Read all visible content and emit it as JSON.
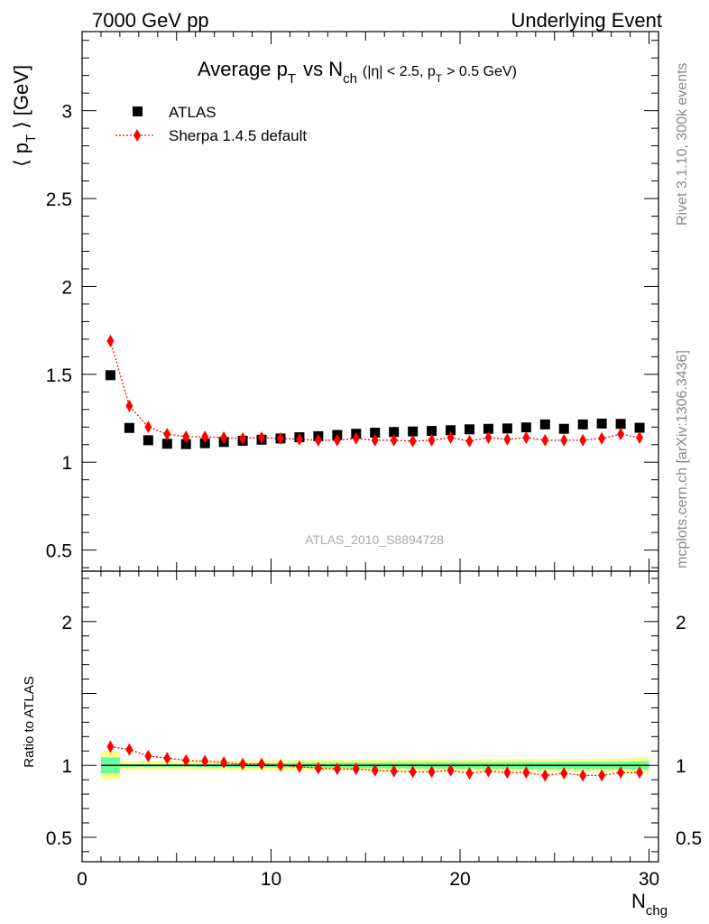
{
  "header": {
    "left": "7000 GeV pp",
    "right": "Underlying Event"
  },
  "side_labels": {
    "rivet": "Rivet 3.1.10,  300k events",
    "mcplots": "mcplots.cern.ch [arXiv:1306.3436]"
  },
  "chart_data": [
    {
      "type": "scatter",
      "title": {
        "main": "Average p",
        "main_sub": "T",
        "vs": "vs N",
        "vs_sub": "ch",
        "cut_a": "(|η| < 2.5, p",
        "cut_sub": "T",
        "cut_b": "> 0.5 GeV)"
      },
      "ylabel": {
        "pre": "⟨ p",
        "sub": "T",
        "post": "⟩ [GeV]"
      },
      "ylim": [
        0.38,
        3.45
      ],
      "yticks": [
        0.5,
        1,
        1.5,
        2,
        2.5,
        3
      ],
      "yticklabels": [
        "0.5",
        "1",
        "1.5",
        "2",
        "2.5",
        "3"
      ],
      "xlim": [
        0,
        30.5
      ],
      "watermark": "ATLAS_2010_S8894728",
      "legend": [
        "ATLAS",
        "Sherpa 1.4.5 default"
      ],
      "legend_position": "top-left",
      "x": [
        1.5,
        2.5,
        3.5,
        4.5,
        5.5,
        6.5,
        7.5,
        8.5,
        9.5,
        10.5,
        11.5,
        12.5,
        13.5,
        14.5,
        15.5,
        16.5,
        17.5,
        18.5,
        19.5,
        20.5,
        21.5,
        22.5,
        23.5,
        24.5,
        25.5,
        26.5,
        27.5,
        28.5,
        29.5
      ],
      "series": [
        {
          "name": "ATLAS",
          "color": "#000000",
          "marker": "square",
          "values": [
            1.495,
            1.195,
            1.125,
            1.105,
            1.103,
            1.108,
            1.115,
            1.122,
            1.128,
            1.135,
            1.142,
            1.148,
            1.155,
            1.162,
            1.168,
            1.172,
            1.175,
            1.178,
            1.182,
            1.187,
            1.19,
            1.192,
            1.198,
            1.215,
            1.19,
            1.215,
            1.22,
            1.218,
            1.196
          ]
        },
        {
          "name": "Sherpa 1.4.5 default",
          "color": "#ff0000",
          "marker": "diamond",
          "line": "dotted",
          "values": [
            1.69,
            1.32,
            1.2,
            1.16,
            1.145,
            1.145,
            1.14,
            1.135,
            1.14,
            1.135,
            1.13,
            1.125,
            1.125,
            1.135,
            1.125,
            1.125,
            1.12,
            1.125,
            1.14,
            1.12,
            1.14,
            1.13,
            1.14,
            1.125,
            1.125,
            1.125,
            1.135,
            1.16,
            1.14
          ]
        }
      ]
    },
    {
      "type": "scatter",
      "ylabel": "Ratio to ATLAS",
      "ylim": [
        0.33,
        2.35
      ],
      "yticks": [
        0.5,
        1,
        2
      ],
      "yticklabels": [
        "0.5",
        "1",
        "2"
      ],
      "xlim": [
        0,
        30.5
      ],
      "xticks": [
        0,
        10,
        20,
        30
      ],
      "xticklabels": [
        "0",
        "10",
        "20",
        "30"
      ],
      "xlabel": {
        "main": "N",
        "sub": "chg"
      },
      "reference_line": 1,
      "band_colors": {
        "inner": "#66ff99",
        "outer": "#ffff88"
      },
      "band_x_edges": [
        1,
        2,
        3,
        4,
        5,
        6,
        7,
        8,
        9,
        10,
        11,
        12,
        13,
        14,
        15,
        16,
        17,
        18,
        19,
        20,
        21,
        22,
        23,
        24,
        25,
        26,
        27,
        28,
        29,
        30
      ],
      "band_inner_halfwidth": [
        0.055,
        0.01,
        0.01,
        0.01,
        0.01,
        0.012,
        0.013,
        0.014,
        0.015,
        0.016,
        0.017,
        0.018,
        0.019,
        0.02,
        0.02,
        0.021,
        0.021,
        0.022,
        0.022,
        0.022,
        0.023,
        0.023,
        0.024,
        0.024,
        0.025,
        0.025,
        0.025,
        0.025,
        0.028
      ],
      "band_outer_halfwidth": [
        0.095,
        0.03,
        0.03,
        0.03,
        0.03,
        0.031,
        0.032,
        0.033,
        0.034,
        0.035,
        0.036,
        0.037,
        0.038,
        0.039,
        0.04,
        0.04,
        0.041,
        0.041,
        0.042,
        0.042,
        0.043,
        0.043,
        0.044,
        0.044,
        0.045,
        0.045,
        0.046,
        0.046,
        0.055
      ],
      "x": [
        1.5,
        2.5,
        3.5,
        4.5,
        5.5,
        6.5,
        7.5,
        8.5,
        9.5,
        10.5,
        11.5,
        12.5,
        13.5,
        14.5,
        15.5,
        16.5,
        17.5,
        18.5,
        19.5,
        20.5,
        21.5,
        22.5,
        23.5,
        24.5,
        25.5,
        26.5,
        27.5,
        28.5,
        29.5
      ],
      "series": [
        {
          "name": "Sherpa 1.4.5 default",
          "color": "#ff0000",
          "marker": "diamond",
          "line": "dotted",
          "values": [
            1.13,
            1.11,
            1.065,
            1.05,
            1.035,
            1.03,
            1.02,
            1.01,
            1.01,
            1.0,
            0.99,
            0.98,
            0.975,
            0.975,
            0.965,
            0.96,
            0.955,
            0.955,
            0.965,
            0.945,
            0.96,
            0.95,
            0.95,
            0.93,
            0.945,
            0.93,
            0.93,
            0.95,
            0.95
          ]
        }
      ]
    }
  ]
}
